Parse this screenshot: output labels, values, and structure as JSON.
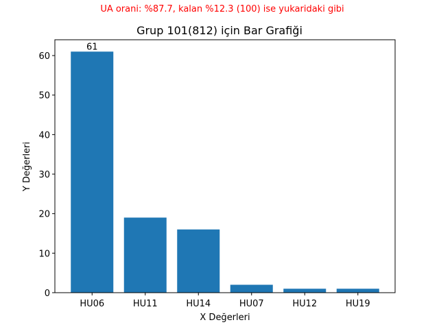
{
  "chart_data": {
    "type": "bar",
    "suptitle": "UA orani: %87.7, kalan %12.3 (100) ise yukaridaki gibi",
    "title": "Grup 101(812) için Bar Grafiği",
    "xlabel": "X Değerleri",
    "ylabel": "Y Değerleri",
    "categories": [
      "HU06",
      "HU11",
      "HU14",
      "HU07",
      "HU12",
      "HU19"
    ],
    "values": [
      61,
      19,
      16,
      2,
      1,
      1
    ],
    "data_labels": [
      "61",
      "",
      "",
      "",
      "",
      ""
    ],
    "ylim": [
      0,
      64
    ],
    "yticks": [
      0,
      10,
      20,
      30,
      40,
      50,
      60
    ],
    "grid": false,
    "legend": "none",
    "colors": {
      "bar": "#1f77b4",
      "suptitle": "#ff0000",
      "text": "#000000",
      "background": "#ffffff"
    }
  }
}
